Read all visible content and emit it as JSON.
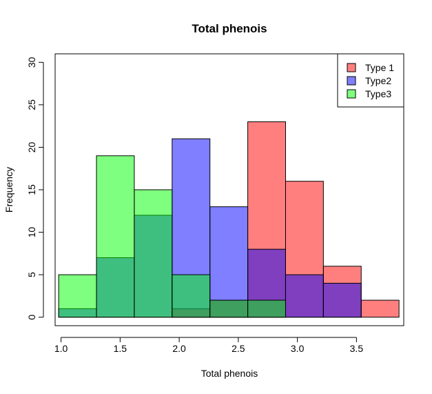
{
  "chart_data": {
    "type": "bar",
    "title": "Total phenois",
    "xlabel": "Total phenois",
    "ylabel": "Frequency",
    "xlim": [
      0.95,
      3.9
    ],
    "ylim": [
      -1,
      31
    ],
    "x_ticks": [
      "1.0",
      "1.5",
      "2.0",
      "2.5",
      "3.0",
      "3.5"
    ],
    "y_ticks": [
      "0",
      "5",
      "10",
      "15",
      "20",
      "25",
      "30"
    ],
    "bins": [
      [
        0.98,
        1.3
      ],
      [
        1.3,
        1.62
      ],
      [
        1.62,
        1.94
      ],
      [
        1.94,
        2.26
      ],
      [
        2.26,
        2.58
      ],
      [
        2.58,
        2.9
      ],
      [
        2.9,
        3.22
      ],
      [
        3.22,
        3.54
      ],
      [
        3.54,
        3.86
      ]
    ],
    "series": [
      {
        "name": "Type 1",
        "color": "#ff0000",
        "values": [
          0,
          0,
          0,
          1,
          2,
          23,
          16,
          6,
          2
        ]
      },
      {
        "name": "Type2",
        "color": "#0000ff",
        "values": [
          1,
          7,
          12,
          21,
          13,
          8,
          5,
          4,
          0
        ]
      },
      {
        "name": "Type3",
        "color": "#00ff00",
        "values": [
          5,
          19,
          15,
          5,
          2,
          2,
          0,
          0,
          0
        ]
      }
    ],
    "legend": "top-right",
    "grid": false
  }
}
